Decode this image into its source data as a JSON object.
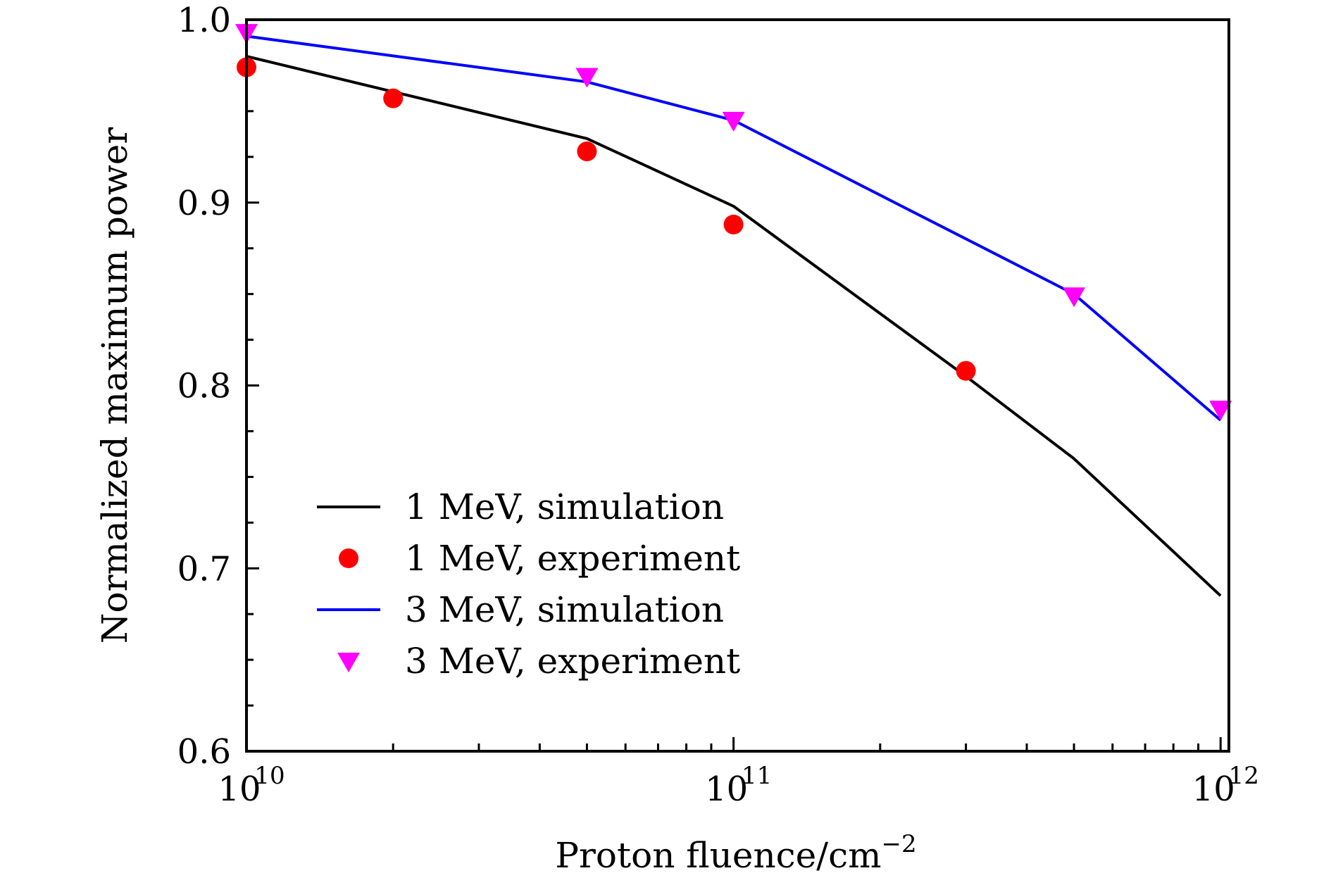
{
  "chart_data": {
    "type": "line",
    "title": "",
    "xlabel": "Proton fluence/cm",
    "xlabel_sup": "−2",
    "ylabel": "Normalized maximum power",
    "xscale": "log",
    "xlim": [
      10000000000.0,
      1040000000000.0
    ],
    "ylim": [
      0.6,
      1.0
    ],
    "x_ticks": [
      {
        "value": 10000000000.0,
        "base": "10",
        "exp": "10"
      },
      {
        "value": 100000000000.0,
        "base": "10",
        "exp": "11"
      },
      {
        "value": 1000000000000.0,
        "base": "10",
        "exp": "12"
      }
    ],
    "y_ticks": [
      {
        "value": 0.6,
        "label": "0.6"
      },
      {
        "value": 0.7,
        "label": "0.7"
      },
      {
        "value": 0.8,
        "label": "0.8"
      },
      {
        "value": 0.9,
        "label": "0.9"
      },
      {
        "value": 1.0,
        "label": "1.0"
      }
    ],
    "y_minor_step": 0.025,
    "grid": false,
    "legend_position": "lower-left",
    "series": [
      {
        "name": "1 MeV, simulation",
        "kind": "line",
        "color": "#000000",
        "x": [
          10000000000.0,
          50000000000.0,
          100000000000.0,
          300000000000.0,
          500000000000.0,
          1000000000000.0
        ],
        "y": [
          0.98,
          0.935,
          0.898,
          0.805,
          0.76,
          0.685
        ]
      },
      {
        "name": "1 MeV, experiment",
        "kind": "marker-circle",
        "color": "#ff0000",
        "x": [
          10000000000.0,
          20000000000.0,
          50000000000.0,
          100000000000.0,
          300000000000.0
        ],
        "y": [
          0.974,
          0.957,
          0.928,
          0.888,
          0.808
        ]
      },
      {
        "name": "3 MeV, simulation",
        "kind": "line",
        "color": "#0000ff",
        "x": [
          10000000000.0,
          50000000000.0,
          100000000000.0,
          500000000000.0,
          1000000000000.0
        ],
        "y": [
          0.991,
          0.966,
          0.945,
          0.85,
          0.781
        ]
      },
      {
        "name": "3 MeV, experiment",
        "kind": "marker-triangle-down",
        "color": "#ff00ff",
        "x": [
          10000000000.0,
          50000000000.0,
          100000000000.0,
          500000000000.0,
          1000000000000.0
        ],
        "y": [
          0.993,
          0.969,
          0.945,
          0.849,
          0.787
        ]
      }
    ]
  }
}
